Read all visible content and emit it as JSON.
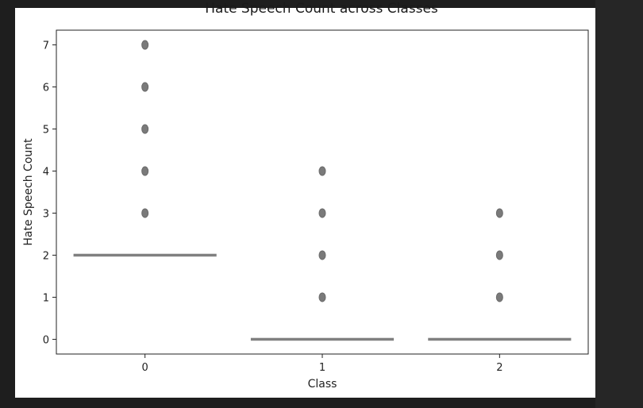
{
  "chart_data": {
    "type": "box",
    "title": "Hate Speech Count across Classes",
    "xlabel": "Class",
    "ylabel": "Hate Speech Count",
    "categories": [
      "0",
      "1",
      "2"
    ],
    "ylim": [
      -0.35,
      7.35
    ],
    "yticks": [
      0,
      1,
      2,
      3,
      4,
      5,
      6,
      7
    ],
    "grid": false,
    "boxes": [
      {
        "category": "0",
        "median": 2,
        "q1": 2,
        "q3": 2,
        "whisker_low": 2,
        "whisker_high": 2,
        "outliers": [
          3,
          4,
          5,
          6,
          7
        ]
      },
      {
        "category": "1",
        "median": 0,
        "q1": 0,
        "q3": 0,
        "whisker_low": 0,
        "whisker_high": 0,
        "outliers": [
          1,
          2,
          3,
          4
        ]
      },
      {
        "category": "2",
        "median": 0,
        "q1": 0,
        "q3": 0,
        "whisker_low": 0,
        "whisker_high": 0,
        "outliers": [
          1,
          2,
          3
        ]
      }
    ],
    "colors": {
      "box": "#808080",
      "outlier": "#7a7a7a",
      "axes": "#222222"
    }
  }
}
